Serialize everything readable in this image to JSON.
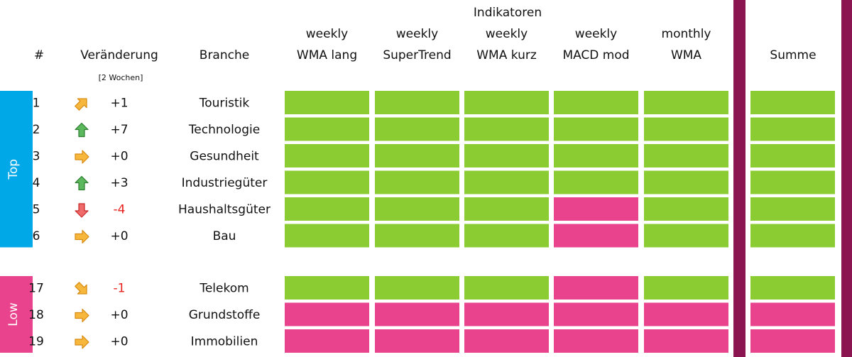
{
  "header": {
    "indicators_group": "Indikatoren",
    "rank": "#",
    "change": "Veränderung",
    "change_note": "[2 Wochen]",
    "sector": "Branche",
    "indicators": [
      [
        "weekly",
        "WMA lang"
      ],
      [
        "weekly",
        "SuperTrend"
      ],
      [
        "weekly",
        "WMA kurz"
      ],
      [
        "weekly",
        "MACD mod"
      ],
      [
        "monthly",
        "WMA"
      ]
    ],
    "sum": "Summe"
  },
  "groups": [
    {
      "label": "Top",
      "color": "#00a8e8",
      "rows": [
        {
          "rank": 1,
          "change": "+1",
          "sector": "Touristik",
          "cells": [
            "#8ccc33",
            "#8ccc33",
            "#8ccc33",
            "#8ccc33",
            "#8ccc33"
          ],
          "sum": "#8ccc33"
        },
        {
          "rank": 2,
          "change": "+7",
          "sector": "Technologie",
          "cells": [
            "#8ccc33",
            "#8ccc33",
            "#8ccc33",
            "#8ccc33",
            "#8ccc33"
          ],
          "sum": "#8ccc33"
        },
        {
          "rank": 3,
          "change": "+0",
          "sector": "Gesundheit",
          "cells": [
            "#8ccc33",
            "#8ccc33",
            "#8ccc33",
            "#8ccc33",
            "#8ccc33"
          ],
          "sum": "#8ccc33"
        },
        {
          "rank": 4,
          "change": "+3",
          "sector": "Industriegüter",
          "cells": [
            "#8ccc33",
            "#8ccc33",
            "#8ccc33",
            "#8ccc33",
            "#8ccc33"
          ],
          "sum": "#8ccc33"
        },
        {
          "rank": 5,
          "change": "-4",
          "sector": "Haushaltsgüter",
          "cells": [
            "#8ccc33",
            "#8ccc33",
            "#8ccc33",
            "#e8438c",
            "#8ccc33"
          ],
          "sum": "#8ccc33"
        },
        {
          "rank": 6,
          "change": "+0",
          "sector": "Bau",
          "cells": [
            "#8ccc33",
            "#8ccc33",
            "#8ccc33",
            "#e8438c",
            "#8ccc33"
          ],
          "sum": "#8ccc33"
        }
      ]
    },
    {
      "label": "Low",
      "color": "#e8438c",
      "rows": [
        {
          "rank": 17,
          "change": "-1",
          "sector": "Telekom",
          "cells": [
            "#8ccc33",
            "#8ccc33",
            "#8ccc33",
            "#e8438c",
            "#8ccc33"
          ],
          "sum": "#8ccc33"
        },
        {
          "rank": 18,
          "change": "+0",
          "sector": "Grundstoffe",
          "cells": [
            "#e8438c",
            "#e8438c",
            "#e8438c",
            "#e8438c",
            "#e8438c"
          ],
          "sum": "#e8438c"
        },
        {
          "rank": 19,
          "change": "+0",
          "sector": "Immobilien",
          "cells": [
            "#e8438c",
            "#e8438c",
            "#e8438c",
            "#e8438c",
            "#e8438c"
          ],
          "sum": "#e8438c"
        }
      ]
    }
  ]
}
